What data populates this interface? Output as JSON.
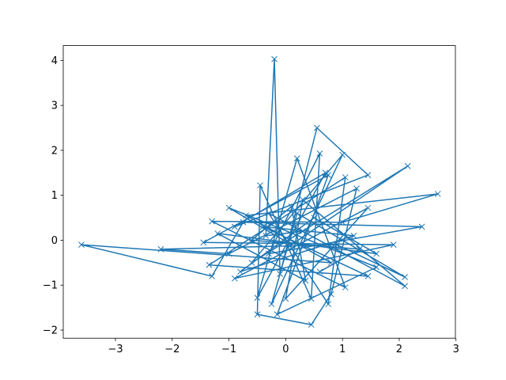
{
  "chart_data": {
    "type": "line",
    "color": "#1f77b4",
    "marker": "x",
    "x": [
      0.3,
      -0.35,
      -0.2,
      -0.1,
      0.55,
      1.45,
      -0.9,
      0.7,
      -0.5,
      0.2,
      1.05,
      -1.3,
      1.0,
      2.68,
      -0.7,
      0.8,
      -3.6,
      -1.3,
      -0.75,
      2.4,
      -0.3,
      0.6,
      0.45,
      -0.45,
      -0.5,
      0.45,
      0.8,
      1.25,
      -1.0,
      -2.2,
      0.9,
      2.1,
      0.2,
      -0.25,
      1.0,
      -0.6,
      2.15,
      0.1,
      -1.0,
      1.6,
      -0.15,
      0.75,
      -1.45,
      1.9,
      -0.9,
      1.45,
      0.0,
      0.3,
      2.1,
      -0.3,
      0.75,
      1.05,
      -1.35,
      1.45,
      -0.4,
      1.2,
      -0.8,
      0.5,
      1.6,
      -1.2,
      0.35,
      0.1,
      -0.6,
      1.3,
      0.6
    ],
    "values": [
      0.2,
      0.1,
      4.03,
      -0.75,
      2.5,
      1.45,
      0.3,
      1.5,
      -1.28,
      1.82,
      -1.05,
      0.42,
      0.4,
      1.03,
      0.55,
      -0.5,
      -0.1,
      -0.8,
      0.4,
      0.3,
      -0.3,
      1.93,
      -1.3,
      1.22,
      -1.65,
      -1.88,
      -1.2,
      1.15,
      -0.3,
      -0.2,
      -0.1,
      -0.82,
      0.6,
      -1.42,
      1.9,
      -0.5,
      1.65,
      -0.1,
      0.72,
      -0.6,
      -1.65,
      1.45,
      -0.05,
      -0.1,
      -0.85,
      0.72,
      -1.3,
      0.9,
      -1.02,
      0.6,
      -1.42,
      1.4,
      -0.55,
      -0.8,
      0.3,
      0.1,
      -0.7,
      0.5,
      -0.3,
      0.15,
      -0.9,
      0.75,
      0.0,
      -0.2,
      -0.7
    ],
    "xlim": [
      -3.92,
      2.99
    ],
    "ylim": [
      -2.18,
      4.33
    ],
    "xticks": [
      {
        "value": -3,
        "label": "−3"
      },
      {
        "value": -2,
        "label": "−2"
      },
      {
        "value": -1,
        "label": "−1"
      },
      0,
      1,
      2,
      3
    ],
    "yticks": [
      {
        "value": -2,
        "label": "−2"
      },
      {
        "value": -1,
        "label": "−1"
      },
      0,
      1,
      2,
      3,
      4
    ],
    "grid": false
  }
}
